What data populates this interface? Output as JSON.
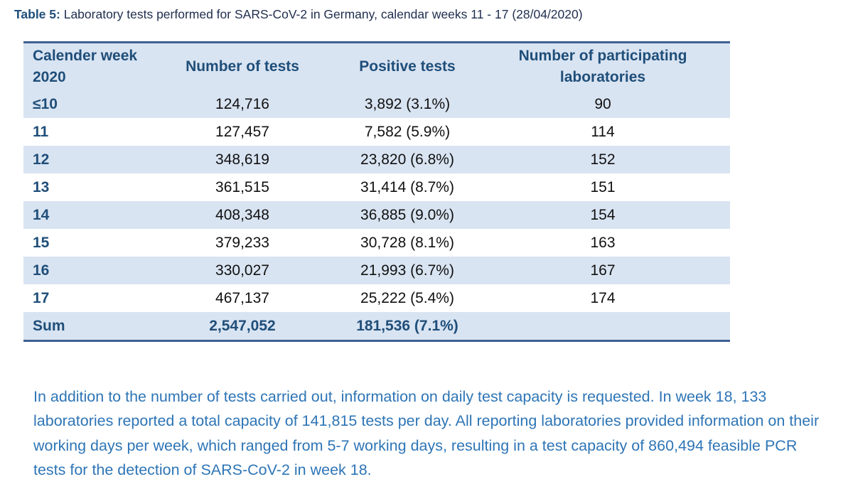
{
  "caption": {
    "lead": "Table 5:",
    "text": "Laboratory tests performed for SARS-CoV-2 in Germany, calendar weeks 11 - 17 (28/04/2020)"
  },
  "table": {
    "headers": {
      "week_line1": "Calender week",
      "week_line2": "2020",
      "tests": "Number of tests",
      "positive": "Positive tests",
      "labs_line1": "Number of participating",
      "labs_line2": "laboratories"
    },
    "rows": [
      {
        "week": "≤10",
        "tests": "124,716",
        "positive": "3,892 (3.1%)",
        "labs": "90"
      },
      {
        "week": "11",
        "tests": "127,457",
        "positive": "7,582 (5.9%)",
        "labs": "114"
      },
      {
        "week": "12",
        "tests": "348,619",
        "positive": "23,820 (6.8%)",
        "labs": "152"
      },
      {
        "week": "13",
        "tests": "361,515",
        "positive": "31,414 (8.7%)",
        "labs": "151"
      },
      {
        "week": "14",
        "tests": "408,348",
        "positive": "36,885 (9.0%)",
        "labs": "154"
      },
      {
        "week": "15",
        "tests": "379,233",
        "positive": "30,728 (8.1%)",
        "labs": "163"
      },
      {
        "week": "16",
        "tests": "330,027",
        "positive": "21,993 (6.7%)",
        "labs": "167"
      },
      {
        "week": "17",
        "tests": "467,137",
        "positive": "25,222 (5.4%)",
        "labs": "174"
      }
    ],
    "sum": {
      "week": "Sum",
      "tests": "2,547,052",
      "positive": "181,536 (7.1%)",
      "labs": ""
    }
  },
  "paragraph": "In addition to the number of tests carried out, information on daily test capacity is requested. In week 18, 133 laboratories reported a total capacity of 141,815 tests per day. All reporting laboratories provided information on their working days per week, which ranged from 5-7 working days, resulting in a test capacity of 860,494 feasible PCR tests for the detection of SARS-CoV-2 in week 18.",
  "colors": {
    "heading_blue": "#1f4e79",
    "shade": "#d9e4f2",
    "rule": "#3f5f92",
    "paragraph_blue": "#2e75b6"
  }
}
